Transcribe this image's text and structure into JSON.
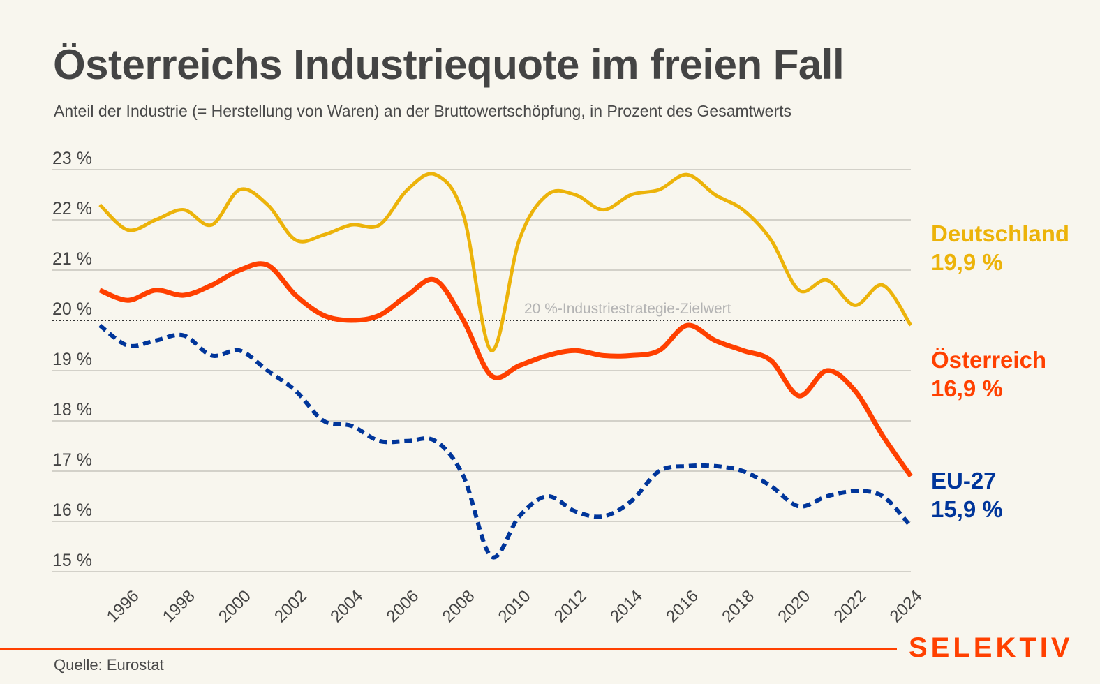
{
  "header": {
    "title": "Österreichs Industriequote im freien Fall",
    "subtitle": "Anteil der Industrie (= Herstellung von Waren) an der Bruttowertschöpfung, in Prozent des Gesamtwerts"
  },
  "footer": {
    "source": "Quelle: Eurostat",
    "brand": "SELEKTIV"
  },
  "colors": {
    "background": "#f8f6ee",
    "deutschland": "#ecb30a",
    "oesterreich": "#ff4000",
    "eu27": "#00359a",
    "grid": "#bdbbb3",
    "brand": "#ff4000"
  },
  "chart_data": {
    "type": "line",
    "title": "Österreichs Industriequote im freien Fall",
    "subtitle": "Anteil der Industrie (= Herstellung von Waren) an der Bruttowertschöpfung, in Prozent des Gesamtwerts",
    "xlabel": "",
    "ylabel": "",
    "x": [
      1995,
      1996,
      1997,
      1998,
      1999,
      2000,
      2001,
      2002,
      2003,
      2004,
      2005,
      2006,
      2007,
      2008,
      2009,
      2010,
      2011,
      2012,
      2013,
      2014,
      2015,
      2016,
      2017,
      2018,
      2019,
      2020,
      2021,
      2022,
      2023,
      2024
    ],
    "x_tick_labels": [
      "1996",
      "1998",
      "2000",
      "2002",
      "2004",
      "2006",
      "2008",
      "2010",
      "2012",
      "2014",
      "2016",
      "2018",
      "2020",
      "2022",
      "2024"
    ],
    "x_ticks": [
      1996,
      1998,
      2000,
      2002,
      2004,
      2006,
      2008,
      2010,
      2012,
      2014,
      2016,
      2018,
      2020,
      2022,
      2024
    ],
    "ylim": [
      15,
      23
    ],
    "y_ticks": [
      15,
      16,
      17,
      18,
      19,
      20,
      21,
      22,
      23
    ],
    "y_tick_labels": [
      "15 %",
      "16 %",
      "17 %",
      "18 %",
      "19 %",
      "20 %",
      "21 %",
      "22 %",
      "23 %"
    ],
    "grid": true,
    "legend": "right (direct labels at line ends)",
    "reference_line": {
      "value": 20,
      "label": "20 %-Industriestrategie-Zielwert",
      "style": "dotted"
    },
    "series": [
      {
        "key": "deutschland",
        "name": "Deutschland",
        "end_label": "19,9 %",
        "style": "solid",
        "values": [
          22.3,
          21.8,
          22.0,
          22.2,
          21.9,
          22.6,
          22.3,
          21.6,
          21.7,
          21.9,
          21.9,
          22.6,
          22.9,
          22.1,
          19.4,
          21.6,
          22.5,
          22.5,
          22.2,
          22.5,
          22.6,
          22.9,
          22.5,
          22.2,
          21.6,
          20.6,
          20.8,
          20.3,
          20.7,
          19.9
        ]
      },
      {
        "key": "oesterreich",
        "name": "Österreich",
        "end_label": "16,9 %",
        "style": "solid",
        "values": [
          20.6,
          20.4,
          20.6,
          20.5,
          20.7,
          21.0,
          21.1,
          20.5,
          20.1,
          20.0,
          20.1,
          20.5,
          20.8,
          20.0,
          18.9,
          19.1,
          19.3,
          19.4,
          19.3,
          19.3,
          19.4,
          19.9,
          19.6,
          19.4,
          19.2,
          18.5,
          19.0,
          18.6,
          17.7,
          16.9
        ]
      },
      {
        "key": "eu27",
        "name": "EU-27",
        "end_label": "15,9 %",
        "style": "dashed",
        "values": [
          19.9,
          19.5,
          19.6,
          19.7,
          19.3,
          19.4,
          19.0,
          18.6,
          18.0,
          17.9,
          17.6,
          17.6,
          17.6,
          16.9,
          15.3,
          16.1,
          16.5,
          16.2,
          16.1,
          16.4,
          17.0,
          17.1,
          17.1,
          17.0,
          16.7,
          16.3,
          16.5,
          16.6,
          16.5,
          15.9
        ]
      }
    ]
  }
}
